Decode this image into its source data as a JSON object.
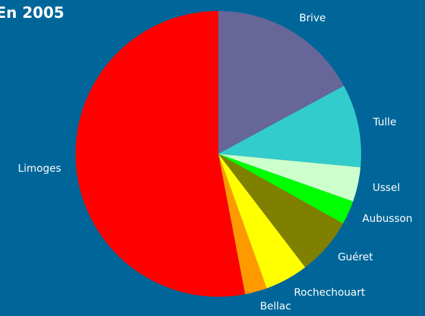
{
  "chart_data": {
    "type": "pie",
    "title": "En 2005",
    "categories": [
      "Brive",
      "Tulle",
      "Ussel",
      "Aubusson",
      "Guéret",
      "Rochechouart",
      "Bellac",
      "Limoges"
    ],
    "values": [
      17.1,
      9.4,
      3.9,
      2.7,
      6.5,
      4.9,
      2.5,
      53.0
    ],
    "colors": [
      "#666699",
      "#33cccc",
      "#ccffcc",
      "#00ff00",
      "#808000",
      "#ffff00",
      "#ff9900",
      "#ff0000"
    ]
  }
}
